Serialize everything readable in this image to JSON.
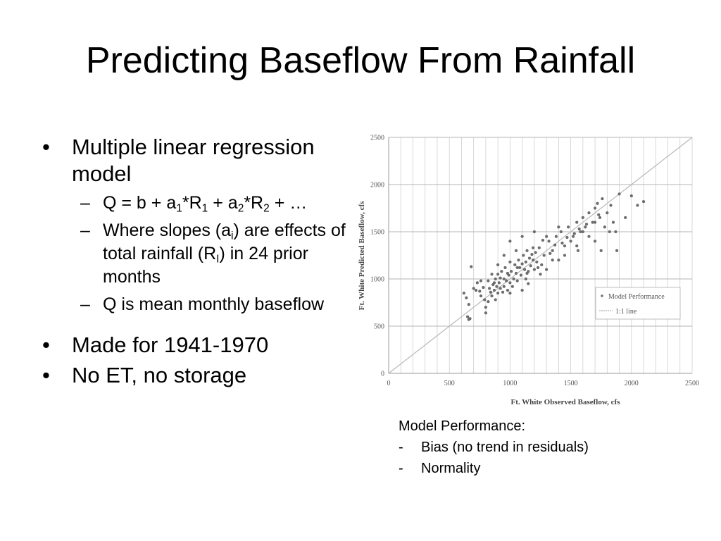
{
  "title": "Predicting Baseflow From Rainfall",
  "bullets": {
    "b1": "Multiple linear regression model",
    "b1_subs": {
      "eq": {
        "q": "Q = b + a",
        "s1": "1",
        "r1": "*R",
        "s2": "1",
        "plus": " + a",
        "s3": "2",
        "r2": "*R",
        "s4": "2",
        "end": " + …"
      },
      "slopes": {
        "a": "Where slopes (a",
        "s": "i",
        "b": ") are effects of total rainfall (R",
        "s2": "I",
        "c": ") in 24 prior months"
      },
      "q_mean": "Q is mean monthly baseflow"
    },
    "b2": "Made for 1941-1970",
    "b3": "No ET, no storage"
  },
  "model_performance": {
    "heading": "Model Performance:",
    "items": [
      "Bias (no trend in residuals)",
      "Normality"
    ]
  },
  "chart_data": {
    "type": "scatter",
    "xlabel": "Ft. White Observed Baseflow, cfs",
    "ylabel": "Ft. White Predicted Baseflow, cfs",
    "xlim": [
      0,
      2500
    ],
    "ylim": [
      0,
      2500
    ],
    "x_ticks": [
      0,
      500,
      1000,
      1500,
      2000,
      2500
    ],
    "y_ticks": [
      0,
      500,
      1000,
      1500,
      2000,
      2500
    ],
    "grid": true,
    "legend_placement": "lower-right",
    "legend": [
      "Model Performance",
      "1:1 line"
    ],
    "reference_line": {
      "name": "1:1 line",
      "x": [
        0,
        2500
      ],
      "y": [
        0,
        2500
      ]
    },
    "series": [
      {
        "name": "Model Performance",
        "points": [
          [
            620,
            850
          ],
          [
            640,
            800
          ],
          [
            660,
            730
          ],
          [
            650,
            600
          ],
          [
            670,
            580
          ],
          [
            660,
            570
          ],
          [
            680,
            1130
          ],
          [
            700,
            900
          ],
          [
            720,
            880
          ],
          [
            730,
            960
          ],
          [
            750,
            870
          ],
          [
            760,
            820
          ],
          [
            780,
            910
          ],
          [
            790,
            780
          ],
          [
            800,
            700
          ],
          [
            800,
            640
          ],
          [
            820,
            980
          ],
          [
            830,
            900
          ],
          [
            840,
            860
          ],
          [
            850,
            820
          ],
          [
            860,
            940
          ],
          [
            870,
            880
          ],
          [
            880,
            1000
          ],
          [
            880,
            780
          ],
          [
            890,
            920
          ],
          [
            900,
            850
          ],
          [
            900,
            1050
          ],
          [
            910,
            960
          ],
          [
            920,
            900
          ],
          [
            930,
            1080
          ],
          [
            940,
            860
          ],
          [
            950,
            1000
          ],
          [
            950,
            920
          ],
          [
            960,
            1120
          ],
          [
            970,
            980
          ],
          [
            980,
            880
          ],
          [
            990,
            1040
          ],
          [
            1000,
            960
          ],
          [
            1000,
            1180
          ],
          [
            1010,
            1080
          ],
          [
            1020,
            920
          ],
          [
            1030,
            1000
          ],
          [
            1040,
            1150
          ],
          [
            1050,
            1060
          ],
          [
            1060,
            980
          ],
          [
            1070,
            1200
          ],
          [
            1080,
            1120
          ],
          [
            1090,
            1040
          ],
          [
            1100,
            1160
          ],
          [
            1110,
            1250
          ],
          [
            1120,
            1100
          ],
          [
            1130,
            1180
          ],
          [
            1140,
            1300
          ],
          [
            1150,
            1080
          ],
          [
            1160,
            1220
          ],
          [
            1170,
            1140
          ],
          [
            1180,
            1260
          ],
          [
            1190,
            1200
          ],
          [
            1200,
            1100
          ],
          [
            1210,
            1280
          ],
          [
            1220,
            1180
          ],
          [
            1240,
            1330
          ],
          [
            1260,
            1150
          ],
          [
            1280,
            1250
          ],
          [
            1300,
            1100
          ],
          [
            1320,
            1400
          ],
          [
            1350,
            1300
          ],
          [
            1380,
            1450
          ],
          [
            1400,
            1200
          ],
          [
            1420,
            1500
          ],
          [
            1450,
            1350
          ],
          [
            1480,
            1550
          ],
          [
            1500,
            1400
          ],
          [
            1520,
            1450
          ],
          [
            1550,
            1600
          ],
          [
            1560,
            1300
          ],
          [
            1580,
            1500
          ],
          [
            1600,
            1650
          ],
          [
            1620,
            1550
          ],
          [
            1650,
            1700
          ],
          [
            1680,
            1600
          ],
          [
            1700,
            1750
          ],
          [
            1700,
            1400
          ],
          [
            1720,
            1800
          ],
          [
            1740,
            1650
          ],
          [
            1760,
            1850
          ],
          [
            1780,
            1550
          ],
          [
            1800,
            1700
          ],
          [
            1820,
            1500
          ],
          [
            1850,
            1600
          ],
          [
            1870,
            1500
          ],
          [
            1880,
            1300
          ],
          [
            1900,
            1900
          ],
          [
            1950,
            1650
          ],
          [
            2000,
            1880
          ],
          [
            2050,
            1780
          ],
          [
            2100,
            1820
          ],
          [
            900,
            1150
          ],
          [
            1000,
            1400
          ],
          [
            1100,
            1450
          ],
          [
            1200,
            1500
          ],
          [
            1050,
            1300
          ],
          [
            950,
            1250
          ],
          [
            1150,
            950
          ],
          [
            1250,
            1050
          ],
          [
            1350,
            1200
          ],
          [
            1450,
            1250
          ],
          [
            1550,
            1350
          ],
          [
            1650,
            1450
          ],
          [
            1750,
            1300
          ],
          [
            850,
            1050
          ],
          [
            1000,
            850
          ],
          [
            1100,
            880
          ],
          [
            1300,
            1450
          ],
          [
            1400,
            1550
          ],
          [
            1600,
            1500
          ],
          [
            1700,
            1600
          ],
          [
            760,
            980
          ],
          [
            820,
            760
          ],
          [
            1130,
            1000
          ],
          [
            1230,
            1120
          ],
          [
            1330,
            1270
          ],
          [
            1430,
            1380
          ],
          [
            1530,
            1480
          ],
          [
            1630,
            1580
          ],
          [
            1730,
            1680
          ],
          [
            1830,
            1780
          ],
          [
            980,
            1060
          ],
          [
            1060,
            1120
          ],
          [
            1140,
            1060
          ],
          [
            920,
            1010
          ],
          [
            870,
            960
          ],
          [
            1190,
            1330
          ],
          [
            1270,
            1410
          ],
          [
            1370,
            1360
          ],
          [
            1470,
            1440
          ],
          [
            1570,
            1530
          ]
        ]
      }
    ]
  }
}
